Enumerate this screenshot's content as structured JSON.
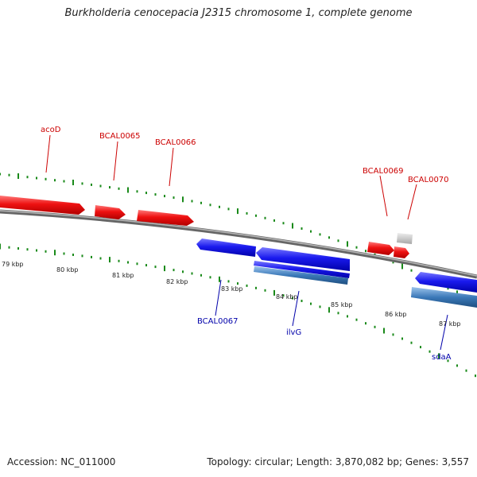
{
  "title": "Burkholderia cenocepacia J2315 chromosome 1, complete genome",
  "footer": {
    "accession": "Accession: NC_011000",
    "summary": "Topology: circular; Length: 3,870,082 bp; Genes: 3,557"
  },
  "colors": {
    "forward_gene": "#ee1111",
    "reverse_gene": "#1a1aee",
    "reverse_gene_alt": "#3a78b8",
    "grey_feature": "#c8c8c8",
    "backbone": "#8a8a8a",
    "ticks": "#1a8a1a",
    "forward_label": "#cc0000",
    "reverse_label": "#0000aa"
  },
  "scale_labels": [
    "79 kbp",
    "80 kbp",
    "81 kbp",
    "82 kbp",
    "83 kbp",
    "84 kbp",
    "85 kbp",
    "86 kbp",
    "87 kbp"
  ],
  "gene_labels": {
    "acoD": "acoD",
    "bcal0065": "BCAL0065",
    "bcal0066": "BCAL0066",
    "bcal0069": "BCAL0069",
    "bcal0070": "BCAL0070",
    "bcal0067": "BCAL0067",
    "ilvG": "ilvG",
    "sdaA": "sdaA"
  }
}
